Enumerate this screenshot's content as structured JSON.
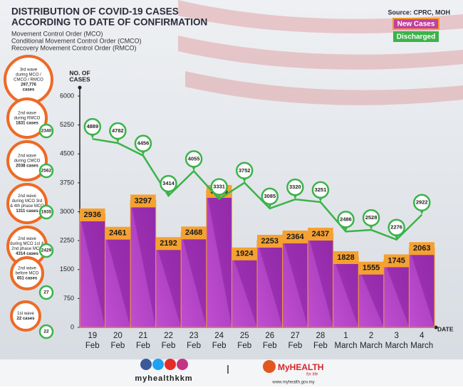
{
  "chart_data": {
    "type": "bar_line",
    "title_lines": [
      "DISTRIBUTION OF COVID-19 CASES",
      "ACCORDING TO DATE OF CONFIRMATION"
    ],
    "subtitle_lines": [
      "Movement Control Order (MCO)",
      "Conditional Movement Control Order (CMCO)",
      "Recovery Movement Control Order (RMCO)"
    ],
    "source": "Source: CPRC, MOH",
    "y_label_lines": [
      "NO. OF",
      "CASES"
    ],
    "x_label": "DATE",
    "categories": [
      [
        "19",
        "Feb"
      ],
      [
        "20",
        "Feb"
      ],
      [
        "21",
        "Feb"
      ],
      [
        "22",
        "Feb"
      ],
      [
        "23",
        "Feb"
      ],
      [
        "24",
        "Feb"
      ],
      [
        "25",
        "Feb"
      ],
      [
        "26",
        "Feb"
      ],
      [
        "27",
        "Feb"
      ],
      [
        "28",
        "Feb"
      ],
      [
        "1",
        "March"
      ],
      [
        "2",
        "March"
      ],
      [
        "3",
        "March"
      ],
      [
        "4",
        "March"
      ]
    ],
    "series": [
      {
        "name": "New Cases",
        "type": "bar",
        "color": "#a63bbd",
        "values": [
          2936,
          2461,
          3297,
          2192,
          2468,
          3545,
          1924,
          2253,
          2364,
          2437,
          1828,
          1555,
          1745,
          2063
        ]
      },
      {
        "name": "Discharged",
        "type": "line",
        "color": "#3bb34a",
        "values": [
          4889,
          4782,
          4456,
          3414,
          4055,
          3331,
          3752,
          3085,
          3320,
          3251,
          2486,
          2528,
          2276,
          2922
        ]
      }
    ],
    "ylim": [
      0,
      6000
    ],
    "yticks": [
      0,
      750,
      1500,
      2250,
      3000,
      3750,
      4500,
      5250,
      6000
    ],
    "waves": [
      {
        "lines": [
          "3rd wave",
          "during MCO /",
          "CMCO / RMCO",
          "297,776",
          "cases"
        ]
      },
      {
        "lines": [
          "2nd wave",
          "during RMCO",
          "1831 cases"
        ],
        "discharged": 2340
      },
      {
        "lines": [
          "2nd wave",
          "during CMCO",
          "2038 cases"
        ],
        "discharged": 2562
      },
      {
        "lines": [
          "2nd wave",
          "during MCO 3rd",
          "& 4th phase MCO",
          "1311 cases"
        ],
        "discharged": 1935
      },
      {
        "lines": [
          "2nd wave",
          "during MCO 1st &",
          "2nd phase MCO",
          "4314 cases"
        ],
        "discharged": 2429
      },
      {
        "lines": [
          "2nd wave",
          "before MCO",
          "651 cases"
        ],
        "discharged": 27
      },
      {
        "lines": [
          "1st wave",
          "22 cases"
        ],
        "discharged": 22
      }
    ],
    "footer": {
      "handle": "myhealthkkm",
      "brand": "MyHEALTH",
      "tagline": "for life",
      "url": "www.myhealth.gov.my"
    }
  }
}
